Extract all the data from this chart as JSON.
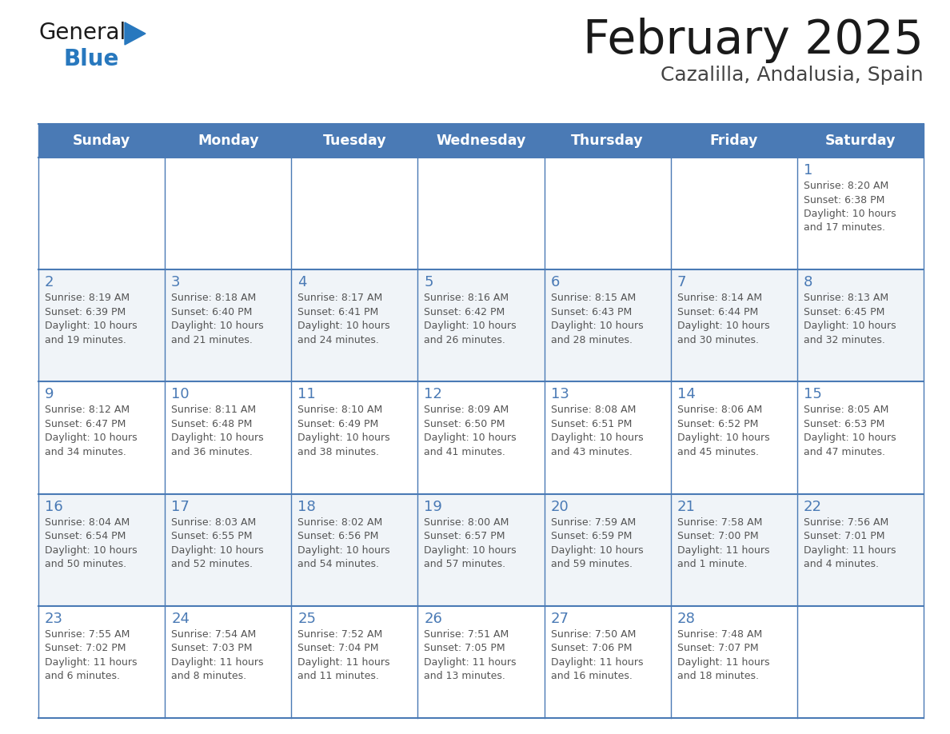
{
  "title": "February 2025",
  "subtitle": "Cazalilla, Andalusia, Spain",
  "header_bg": "#4a7ab5",
  "header_text": "#FFFFFF",
  "header_days": [
    "Sunday",
    "Monday",
    "Tuesday",
    "Wednesday",
    "Thursday",
    "Friday",
    "Saturday"
  ],
  "row_bg_odd": "#FFFFFF",
  "row_bg_even": "#F0F4F8",
  "cell_border": "#4a7ab5",
  "day_number_color": "#4a7ab5",
  "info_color": "#555555",
  "logo_general_color": "#1a1a1a",
  "logo_blue_color": "#2878be",
  "days": [
    {
      "date": 1,
      "col": 6,
      "row": 0,
      "sunrise": "8:20 AM",
      "sunset": "6:38 PM",
      "daylight_line1": "Daylight: 10 hours",
      "daylight_line2": "and 17 minutes."
    },
    {
      "date": 2,
      "col": 0,
      "row": 1,
      "sunrise": "8:19 AM",
      "sunset": "6:39 PM",
      "daylight_line1": "Daylight: 10 hours",
      "daylight_line2": "and 19 minutes."
    },
    {
      "date": 3,
      "col": 1,
      "row": 1,
      "sunrise": "8:18 AM",
      "sunset": "6:40 PM",
      "daylight_line1": "Daylight: 10 hours",
      "daylight_line2": "and 21 minutes."
    },
    {
      "date": 4,
      "col": 2,
      "row": 1,
      "sunrise": "8:17 AM",
      "sunset": "6:41 PM",
      "daylight_line1": "Daylight: 10 hours",
      "daylight_line2": "and 24 minutes."
    },
    {
      "date": 5,
      "col": 3,
      "row": 1,
      "sunrise": "8:16 AM",
      "sunset": "6:42 PM",
      "daylight_line1": "Daylight: 10 hours",
      "daylight_line2": "and 26 minutes."
    },
    {
      "date": 6,
      "col": 4,
      "row": 1,
      "sunrise": "8:15 AM",
      "sunset": "6:43 PM",
      "daylight_line1": "Daylight: 10 hours",
      "daylight_line2": "and 28 minutes."
    },
    {
      "date": 7,
      "col": 5,
      "row": 1,
      "sunrise": "8:14 AM",
      "sunset": "6:44 PM",
      "daylight_line1": "Daylight: 10 hours",
      "daylight_line2": "and 30 minutes."
    },
    {
      "date": 8,
      "col": 6,
      "row": 1,
      "sunrise": "8:13 AM",
      "sunset": "6:45 PM",
      "daylight_line1": "Daylight: 10 hours",
      "daylight_line2": "and 32 minutes."
    },
    {
      "date": 9,
      "col": 0,
      "row": 2,
      "sunrise": "8:12 AM",
      "sunset": "6:47 PM",
      "daylight_line1": "Daylight: 10 hours",
      "daylight_line2": "and 34 minutes."
    },
    {
      "date": 10,
      "col": 1,
      "row": 2,
      "sunrise": "8:11 AM",
      "sunset": "6:48 PM",
      "daylight_line1": "Daylight: 10 hours",
      "daylight_line2": "and 36 minutes."
    },
    {
      "date": 11,
      "col": 2,
      "row": 2,
      "sunrise": "8:10 AM",
      "sunset": "6:49 PM",
      "daylight_line1": "Daylight: 10 hours",
      "daylight_line2": "and 38 minutes."
    },
    {
      "date": 12,
      "col": 3,
      "row": 2,
      "sunrise": "8:09 AM",
      "sunset": "6:50 PM",
      "daylight_line1": "Daylight: 10 hours",
      "daylight_line2": "and 41 minutes."
    },
    {
      "date": 13,
      "col": 4,
      "row": 2,
      "sunrise": "8:08 AM",
      "sunset": "6:51 PM",
      "daylight_line1": "Daylight: 10 hours",
      "daylight_line2": "and 43 minutes."
    },
    {
      "date": 14,
      "col": 5,
      "row": 2,
      "sunrise": "8:06 AM",
      "sunset": "6:52 PM",
      "daylight_line1": "Daylight: 10 hours",
      "daylight_line2": "and 45 minutes."
    },
    {
      "date": 15,
      "col": 6,
      "row": 2,
      "sunrise": "8:05 AM",
      "sunset": "6:53 PM",
      "daylight_line1": "Daylight: 10 hours",
      "daylight_line2": "and 47 minutes."
    },
    {
      "date": 16,
      "col": 0,
      "row": 3,
      "sunrise": "8:04 AM",
      "sunset": "6:54 PM",
      "daylight_line1": "Daylight: 10 hours",
      "daylight_line2": "and 50 minutes."
    },
    {
      "date": 17,
      "col": 1,
      "row": 3,
      "sunrise": "8:03 AM",
      "sunset": "6:55 PM",
      "daylight_line1": "Daylight: 10 hours",
      "daylight_line2": "and 52 minutes."
    },
    {
      "date": 18,
      "col": 2,
      "row": 3,
      "sunrise": "8:02 AM",
      "sunset": "6:56 PM",
      "daylight_line1": "Daylight: 10 hours",
      "daylight_line2": "and 54 minutes."
    },
    {
      "date": 19,
      "col": 3,
      "row": 3,
      "sunrise": "8:00 AM",
      "sunset": "6:57 PM",
      "daylight_line1": "Daylight: 10 hours",
      "daylight_line2": "and 57 minutes."
    },
    {
      "date": 20,
      "col": 4,
      "row": 3,
      "sunrise": "7:59 AM",
      "sunset": "6:59 PM",
      "daylight_line1": "Daylight: 10 hours",
      "daylight_line2": "and 59 minutes."
    },
    {
      "date": 21,
      "col": 5,
      "row": 3,
      "sunrise": "7:58 AM",
      "sunset": "7:00 PM",
      "daylight_line1": "Daylight: 11 hours",
      "daylight_line2": "and 1 minute."
    },
    {
      "date": 22,
      "col": 6,
      "row": 3,
      "sunrise": "7:56 AM",
      "sunset": "7:01 PM",
      "daylight_line1": "Daylight: 11 hours",
      "daylight_line2": "and 4 minutes."
    },
    {
      "date": 23,
      "col": 0,
      "row": 4,
      "sunrise": "7:55 AM",
      "sunset": "7:02 PM",
      "daylight_line1": "Daylight: 11 hours",
      "daylight_line2": "and 6 minutes."
    },
    {
      "date": 24,
      "col": 1,
      "row": 4,
      "sunrise": "7:54 AM",
      "sunset": "7:03 PM",
      "daylight_line1": "Daylight: 11 hours",
      "daylight_line2": "and 8 minutes."
    },
    {
      "date": 25,
      "col": 2,
      "row": 4,
      "sunrise": "7:52 AM",
      "sunset": "7:04 PM",
      "daylight_line1": "Daylight: 11 hours",
      "daylight_line2": "and 11 minutes."
    },
    {
      "date": 26,
      "col": 3,
      "row": 4,
      "sunrise": "7:51 AM",
      "sunset": "7:05 PM",
      "daylight_line1": "Daylight: 11 hours",
      "daylight_line2": "and 13 minutes."
    },
    {
      "date": 27,
      "col": 4,
      "row": 4,
      "sunrise": "7:50 AM",
      "sunset": "7:06 PM",
      "daylight_line1": "Daylight: 11 hours",
      "daylight_line2": "and 16 minutes."
    },
    {
      "date": 28,
      "col": 5,
      "row": 4,
      "sunrise": "7:48 AM",
      "sunset": "7:07 PM",
      "daylight_line1": "Daylight: 11 hours",
      "daylight_line2": "and 18 minutes."
    }
  ]
}
